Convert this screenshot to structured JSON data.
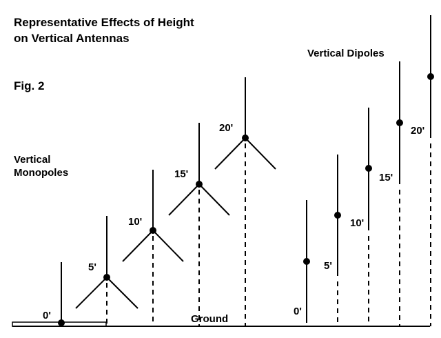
{
  "title_line1": "Representative Effects of Height",
  "title_line2": "on Vertical Antennas",
  "figure_label": "Fig. 2",
  "monopoles": {
    "label_line1": "Vertical",
    "label_line2": "Monopoles",
    "items": [
      {
        "height": "0'"
      },
      {
        "height": "5'"
      },
      {
        "height": "10'"
      },
      {
        "height": "15'"
      },
      {
        "height": "20'"
      }
    ]
  },
  "dipoles": {
    "label": "Vertical Dipoles",
    "items": [
      {
        "height": "0'"
      },
      {
        "height": "5'"
      },
      {
        "height": "10'"
      },
      {
        "height": "15'"
      },
      {
        "height": "20'"
      }
    ]
  },
  "ground_label": "Ground"
}
